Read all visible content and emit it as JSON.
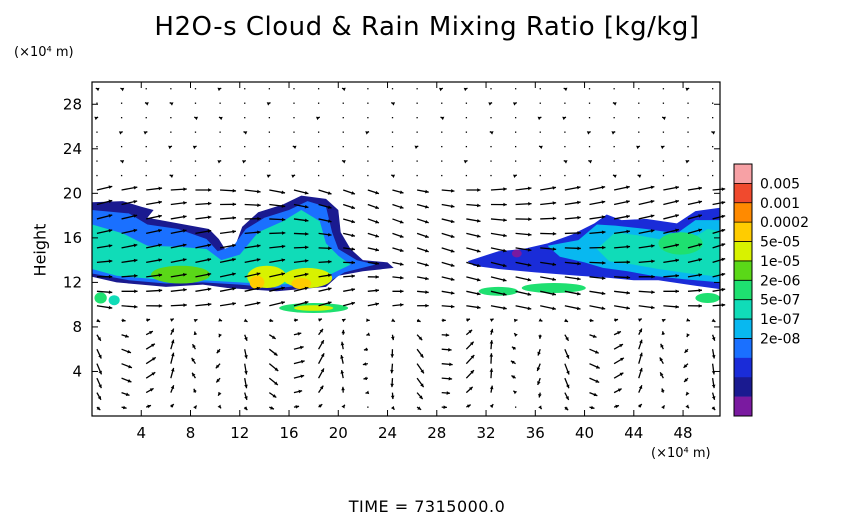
{
  "chart_data": {
    "type": "heatmap",
    "title": "H2O-s Cloud & Rain Mixing Ratio [kg/kg]",
    "ylabel": "Height",
    "xlabel": "",
    "x_unit": "(×10⁴ m)",
    "y_unit": "(×10⁴ m)",
    "xlim": [
      0,
      51
    ],
    "ylim": [
      0,
      30
    ],
    "x_ticks": [
      4,
      8,
      12,
      16,
      20,
      24,
      28,
      32,
      36,
      40,
      44,
      48
    ],
    "y_ticks": [
      4,
      8,
      12,
      16,
      20,
      24,
      28
    ],
    "colorbar": {
      "labels": [
        "0.005",
        "0.001",
        "0.0002",
        "5e-05",
        "1e-05",
        "2e-06",
        "5e-07",
        "1e-07",
        "2e-08"
      ],
      "colors": [
        "#f7a1a5",
        "#f04a2e",
        "#ff8a00",
        "#ffcc00",
        "#d8f200",
        "#5ad818",
        "#1ee070",
        "#10dcb8",
        "#08b8f0",
        "#1a70ff",
        "#1a2cd8",
        "#1a1a90",
        "#7a1aa0"
      ]
    },
    "cloud_regions": [
      {
        "x": 1.5,
        "y": 17.0,
        "level": 2
      },
      {
        "x": 4.0,
        "y": 16.0,
        "level": 4
      },
      {
        "x": 7.0,
        "y": 13.5,
        "level": 7
      },
      {
        "x": 12.0,
        "y": 14.0,
        "level": 6
      },
      {
        "x": 15.0,
        "y": 16.5,
        "level": 5
      },
      {
        "x": 17.0,
        "y": 13.0,
        "level": 9
      },
      {
        "x": 18.0,
        "y": 9.7,
        "level": 8
      },
      {
        "x": 22.5,
        "y": 13.0,
        "level": 3
      },
      {
        "x": 1.2,
        "y": 10.5,
        "level": 6
      },
      {
        "x": 32.5,
        "y": 10.8,
        "level": 6
      },
      {
        "x": 36.5,
        "y": 13.5,
        "level": 1
      },
      {
        "x": 37.0,
        "y": 11.5,
        "level": 6
      },
      {
        "x": 41.5,
        "y": 14.5,
        "level": 3
      },
      {
        "x": 45.0,
        "y": 13.5,
        "level": 5
      },
      {
        "x": 48.5,
        "y": 15.5,
        "level": 4
      },
      {
        "x": 50.0,
        "y": 10.5,
        "level": 5
      }
    ],
    "wind_vectors": {
      "grid_dx": 2.0,
      "grid_dy": 1.3,
      "pattern": "overturning cells below 9; westerly flow aloft"
    }
  },
  "footer": {
    "time_label": "TIME = 7315000.0"
  }
}
